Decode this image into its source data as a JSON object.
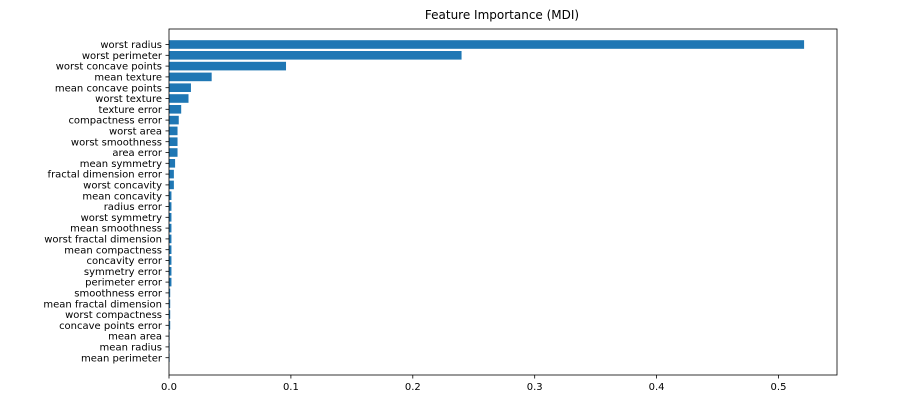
{
  "chart_data": {
    "type": "bar",
    "orientation": "horizontal",
    "title": "Feature Importance (MDI)",
    "xlabel": "",
    "ylabel": "",
    "xlim": [
      0,
      0.548
    ],
    "xticks": [
      0.0,
      0.1,
      0.2,
      0.3,
      0.4,
      0.5
    ],
    "xtick_labels": [
      "0.0",
      "0.1",
      "0.2",
      "0.3",
      "0.4",
      "0.5"
    ],
    "grid": false,
    "color": "#1f77b4",
    "categories": [
      "worst radius",
      "worst perimeter",
      "worst concave points",
      "mean texture",
      "mean concave points",
      "worst texture",
      "texture error",
      "compactness error",
      "worst area",
      "worst smoothness",
      "area error",
      "mean symmetry",
      "fractal dimension error",
      "worst concavity",
      "mean concavity",
      "radius error",
      "worst symmetry",
      "mean smoothness",
      "worst fractal dimension",
      "mean compactness",
      "concavity error",
      "symmetry error",
      "perimeter error",
      "smoothness error",
      "mean fractal dimension",
      "worst compactness",
      "concave points error",
      "mean area",
      "mean radius",
      "mean perimeter"
    ],
    "values": [
      0.521,
      0.24,
      0.096,
      0.035,
      0.018,
      0.016,
      0.01,
      0.008,
      0.007,
      0.007,
      0.007,
      0.005,
      0.004,
      0.004,
      0.002,
      0.002,
      0.002,
      0.002,
      0.002,
      0.002,
      0.002,
      0.002,
      0.002,
      0.001,
      0.001,
      0.001,
      0.001,
      0.0005,
      0.0005,
      0.0005
    ]
  }
}
